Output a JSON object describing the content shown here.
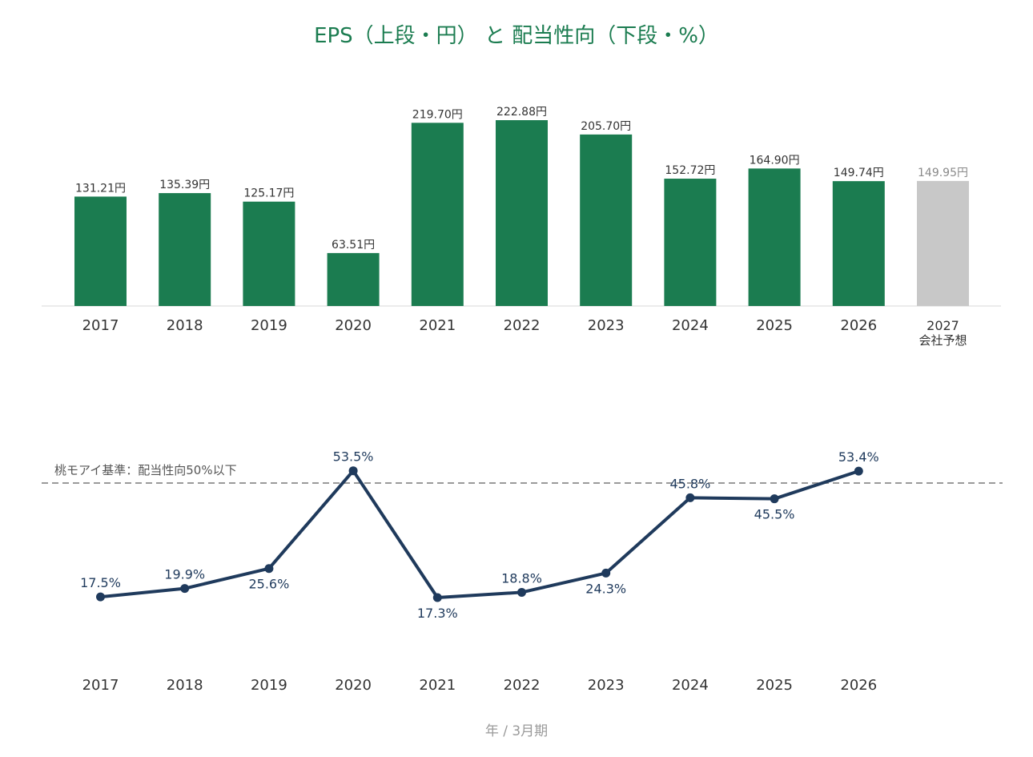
{
  "title": "EPS（上段・円） と 配当性向（下段・%）",
  "footer_label": "年 / 3月期",
  "colors": {
    "actual_bar": "#1b7c50",
    "forecast_bar": "#c8c8c8",
    "line": "#1f3a5c",
    "reference": "#9a9a9a",
    "title": "#1b7c50"
  },
  "chart_data": [
    {
      "type": "bar",
      "categories": [
        "2017",
        "2018",
        "2019",
        "2020",
        "2021",
        "2022",
        "2023",
        "2024",
        "2025",
        "2026",
        "2027"
      ],
      "values": [
        131.21,
        135.39,
        125.17,
        63.51,
        219.7,
        222.88,
        205.7,
        152.72,
        164.9,
        149.74,
        149.95
      ],
      "value_labels": [
        "131.21円",
        "135.39円",
        "125.17円",
        "63.51円",
        "219.70円",
        "222.88円",
        "205.70円",
        "152.72円",
        "164.90円",
        "149.74円",
        "149.95円"
      ],
      "forecast_index": 10,
      "forecast_note": "会社予想",
      "unit": "円",
      "ylim": [
        0,
        230
      ],
      "grid": false
    },
    {
      "type": "line",
      "categories": [
        "2017",
        "2018",
        "2019",
        "2020",
        "2021",
        "2022",
        "2023",
        "2024",
        "2025",
        "2026"
      ],
      "values": [
        17.5,
        19.9,
        25.6,
        53.5,
        17.3,
        18.8,
        24.3,
        45.8,
        45.5,
        53.4
      ],
      "value_labels": [
        "17.5%",
        "19.9%",
        "25.6%",
        "53.5%",
        "17.3%",
        "18.8%",
        "24.3%",
        "45.8%",
        "45.5%",
        "53.4%"
      ],
      "label_positions": [
        "above",
        "above",
        "below",
        "above",
        "below",
        "above",
        "below",
        "above",
        "below",
        "above"
      ],
      "reference_value": 50,
      "reference_label": "桃モアイ基準：配当性向50%以下",
      "unit": "%",
      "ylim": [
        10,
        60
      ],
      "grid": false
    }
  ]
}
